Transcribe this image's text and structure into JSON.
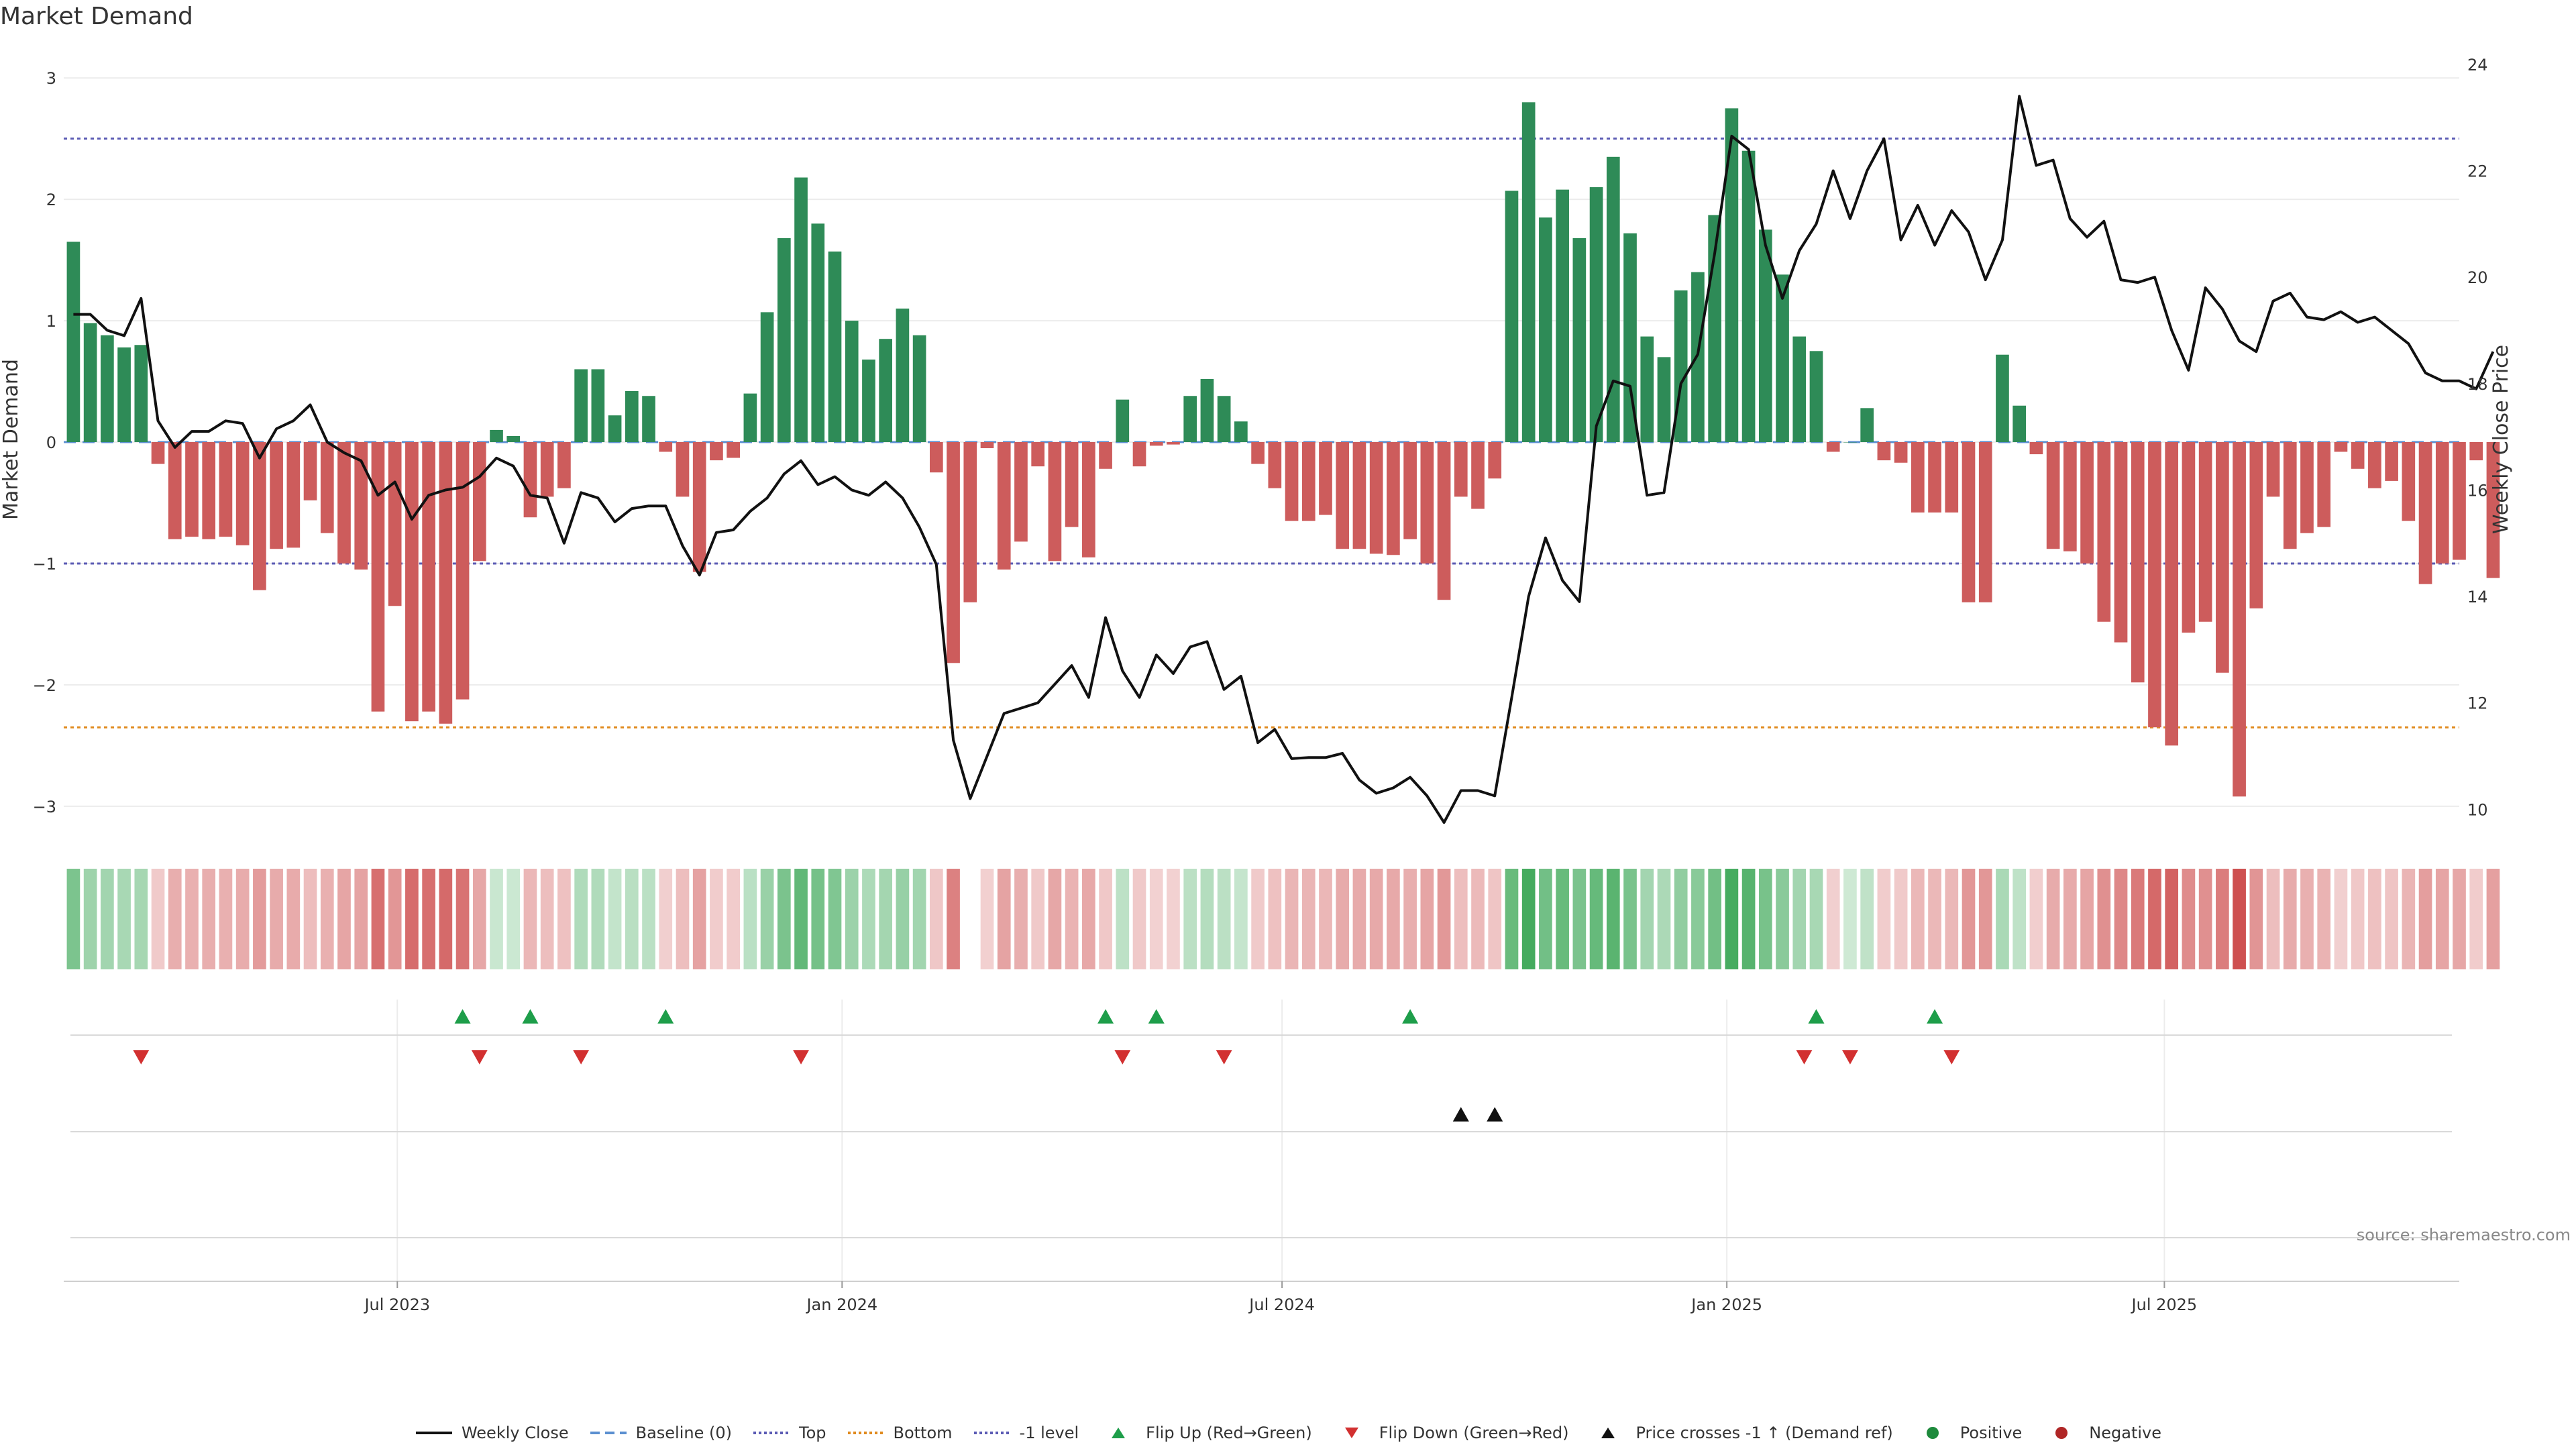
{
  "title": "Market Demand",
  "source": "source: sharemaestro.com",
  "chart_data": {
    "type": "bar",
    "title": "Market Demand",
    "ylabel": "Market Demand",
    "y2label": "Weekly Close Price",
    "ylim": [
      -3.2,
      3.2
    ],
    "y2lim": [
      9.6,
      24.2
    ],
    "yticks": [
      "3",
      "2",
      "1",
      "0",
      "−1",
      "−2",
      "−3"
    ],
    "yticks_values": [
      3,
      2,
      1,
      0,
      -1,
      -2,
      -3
    ],
    "y2ticks": [
      "24",
      "22",
      "20",
      "18",
      "16",
      "14",
      "12",
      "10"
    ],
    "y2ticks_values": [
      24,
      22,
      20,
      18,
      16,
      14,
      12,
      10
    ],
    "x_start": "2023-02-13",
    "x_end": "2025-10-31",
    "xticks": [
      {
        "date": "2023-07-01",
        "label": "Jul 2023"
      },
      {
        "date": "2024-01-01",
        "label": "Jan 2024"
      },
      {
        "date": "2024-07-01",
        "label": "Jul 2024"
      },
      {
        "date": "2025-01-01",
        "label": "Jan 2025"
      },
      {
        "date": "2025-07-01",
        "label": "Jul 2025"
      }
    ],
    "reference_lines": [
      {
        "name": "Top",
        "value": 2.5,
        "color": "#5b5bb4",
        "style": "dotted"
      },
      {
        "name": "-1 level",
        "value": -1.0,
        "color": "#5b5bb4",
        "style": "dotted"
      },
      {
        "name": "Bottom",
        "value": -2.35,
        "color": "#e08a1e",
        "style": "dotted"
      },
      {
        "name": "Baseline (0)",
        "value": 0,
        "color": "#5b8fd0",
        "style": "dashed"
      }
    ],
    "bar_start": "2023-02-17",
    "bar_step_days": 7,
    "series": [
      {
        "name": "Market Demand",
        "type": "bar",
        "values": [
          1.65,
          0.98,
          0.88,
          0.78,
          0.8,
          -0.18,
          -0.8,
          -0.78,
          -0.8,
          -0.78,
          -0.85,
          -1.22,
          -0.88,
          -0.87,
          -0.48,
          -0.75,
          -1.0,
          -1.05,
          -2.22,
          -1.35,
          -2.3,
          -2.22,
          -2.32,
          -2.12,
          -0.98,
          0.1,
          0.05,
          -0.62,
          -0.45,
          -0.38,
          0.6,
          0.6,
          0.22,
          0.42,
          0.38,
          -0.08,
          -0.45,
          -1.07,
          -0.15,
          -0.13,
          0.4,
          1.07,
          1.68,
          2.18,
          1.8,
          1.57,
          1.0,
          0.68,
          0.85,
          1.1,
          0.88,
          -0.25,
          -1.82,
          -1.32,
          -0.05,
          -1.05,
          -0.82,
          -0.2,
          -0.98,
          -0.7,
          -0.95,
          -0.22,
          0.35,
          -0.2,
          -0.03,
          -0.02,
          0.38,
          0.52,
          0.38,
          0.17,
          -0.18,
          -0.38,
          -0.65,
          -0.65,
          -0.6,
          -0.88,
          -0.88,
          -0.92,
          -0.93,
          -0.8,
          -1.0,
          -1.3,
          -0.45,
          -0.55,
          -0.3,
          2.07,
          2.8,
          1.85,
          2.08,
          1.68,
          2.1,
          2.35,
          1.72,
          0.87,
          0.7,
          1.25,
          1.4,
          1.87,
          2.75,
          2.4,
          1.75,
          1.38,
          0.87,
          0.75,
          -0.08,
          0.0,
          0.28,
          -0.15,
          -0.17,
          -0.58,
          -0.58,
          -0.58,
          -1.32,
          -1.32,
          0.72,
          0.3,
          -0.1,
          -0.88,
          -0.9,
          -1.0,
          -1.48,
          -1.65,
          -1.98,
          -2.35,
          -2.5,
          -1.57,
          -1.48,
          -1.9,
          -2.92,
          -1.37,
          -0.45,
          -0.88,
          -0.75,
          -0.7,
          -0.08,
          -0.22,
          -0.38,
          -0.32,
          -0.65,
          -1.17,
          -1.0,
          -0.97,
          -0.15,
          -1.12
        ]
      },
      {
        "name": "Weekly Close",
        "type": "line",
        "axis": "right",
        "values": [
          19.3,
          19.3,
          19.0,
          18.9,
          19.6,
          17.3,
          16.8,
          17.1,
          17.1,
          17.3,
          17.25,
          16.6,
          17.15,
          17.3,
          17.6,
          16.9,
          16.7,
          16.55,
          15.9,
          16.15,
          15.45,
          15.9,
          16.0,
          16.05,
          16.25,
          16.6,
          16.45,
          15.9,
          15.85,
          15.0,
          15.95,
          15.85,
          15.4,
          15.65,
          15.7,
          15.7,
          14.95,
          14.4,
          15.2,
          15.25,
          15.6,
          15.85,
          16.3,
          16.55,
          16.1,
          16.25,
          16.0,
          15.9,
          16.15,
          15.85,
          15.3,
          14.6,
          11.3,
          10.2,
          11.0,
          11.8,
          11.9,
          12.0,
          12.35,
          12.7,
          12.1,
          13.6,
          12.6,
          12.1,
          12.9,
          12.55,
          13.05,
          13.15,
          12.25,
          12.5,
          11.25,
          11.5,
          10.95,
          10.97,
          10.97,
          11.05,
          10.55,
          10.3,
          10.4,
          10.6,
          10.25,
          9.75,
          10.35,
          10.35,
          10.25,
          12.1,
          14.0,
          15.1,
          14.3,
          13.9,
          17.2,
          18.05,
          17.95,
          15.9,
          15.95,
          18.0,
          18.55,
          20.45,
          22.65,
          22.4,
          20.6,
          19.6,
          20.5,
          21.0,
          22.0,
          21.1,
          22.0,
          22.6,
          20.7,
          21.35,
          20.6,
          21.25,
          20.85,
          19.95,
          20.7,
          23.4,
          22.1,
          22.2,
          21.1,
          20.75,
          21.05,
          19.95,
          19.9,
          20.0,
          19.0,
          18.25,
          19.8,
          19.4,
          18.8,
          18.6,
          19.55,
          19.7,
          19.25,
          19.2,
          19.35,
          19.15,
          19.25,
          19.0,
          18.75,
          18.2,
          18.05,
          18.05,
          17.9,
          18.6,
          18.3
        ]
      }
    ],
    "flip_up_dates": [
      "2023-07-28",
      "2023-08-25",
      "2023-10-20",
      "2024-04-19",
      "2024-05-10",
      "2024-08-23",
      "2025-02-07",
      "2025-03-28"
    ],
    "flip_down_dates": [
      "2023-03-17",
      "2023-08-04",
      "2023-09-15",
      "2023-12-15",
      "2024-04-26",
      "2024-06-07",
      "2025-02-02",
      "2025-02-21",
      "2025-04-04"
    ],
    "price_cross_dates": [
      "2024-09-13",
      "2024-09-27"
    ],
    "legend": [
      {
        "label": "Weekly Close",
        "kind": "line",
        "color": "#111111"
      },
      {
        "label": "Baseline (0)",
        "kind": "dashed",
        "color": "#5b8fd0"
      },
      {
        "label": "Top",
        "kind": "dotted",
        "color": "#5b5bb4"
      },
      {
        "label": "Bottom",
        "kind": "dotted",
        "color": "#e08a1e"
      },
      {
        "label": "-1 level",
        "kind": "dotted",
        "color": "#5b5bb4"
      },
      {
        "label": "Flip Up (Red→Green)",
        "kind": "tri-up",
        "color": "#1e9e4a"
      },
      {
        "label": "Flip Down (Green→Red)",
        "kind": "tri-down",
        "color": "#d23030"
      },
      {
        "label": "Price crosses -1 ↑ (Demand ref)",
        "kind": "tri-up",
        "color": "#111111"
      },
      {
        "label": "Positive",
        "kind": "dot",
        "color": "#1e8a3c"
      },
      {
        "label": "Negative",
        "kind": "dot",
        "color": "#b02626"
      }
    ]
  },
  "colors": {
    "positive_bar": "#2e8b57",
    "negative_bar": "#cd5c5c",
    "price_line": "#111111",
    "heat_positive": "#3aa655",
    "heat_negative": "#cd4c4c"
  }
}
